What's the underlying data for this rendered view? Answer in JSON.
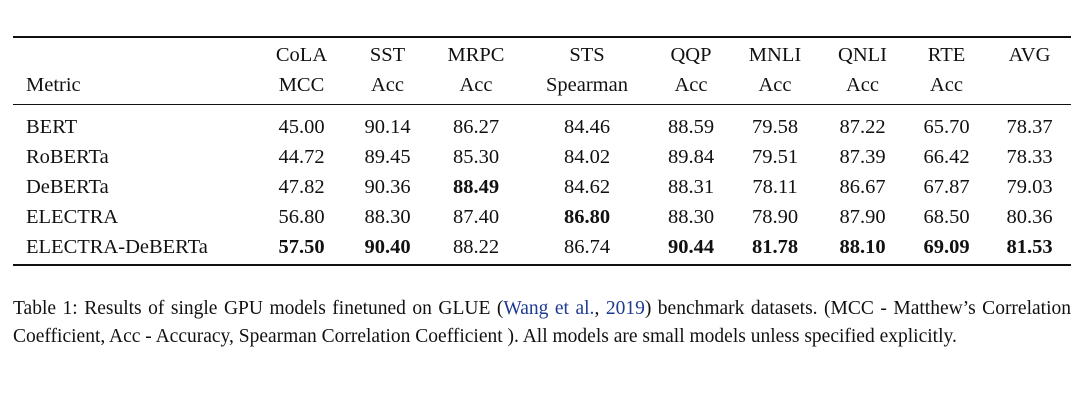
{
  "table": {
    "columns": [
      {
        "bottom": "Metric"
      },
      {
        "top": "CoLA",
        "bottom": "MCC"
      },
      {
        "top": "SST",
        "bottom": "Acc"
      },
      {
        "top": "MRPC",
        "bottom": "Acc"
      },
      {
        "top": "STS",
        "bottom": "Spearman"
      },
      {
        "top": "QQP",
        "bottom": "Acc"
      },
      {
        "top": "MNLI",
        "bottom": "Acc"
      },
      {
        "top": "QNLI",
        "bottom": "Acc"
      },
      {
        "top": "RTE",
        "bottom": "Acc"
      },
      {
        "top": "AVG"
      }
    ],
    "rows": [
      {
        "model": "BERT",
        "scores": [
          "45.00",
          "90.14",
          "86.27",
          "84.46",
          "88.59",
          "79.58",
          "87.22",
          "65.70",
          "78.37"
        ],
        "bold": [
          false,
          false,
          false,
          false,
          false,
          false,
          false,
          false,
          false
        ]
      },
      {
        "model": "RoBERTa",
        "scores": [
          "44.72",
          "89.45",
          "85.30",
          "84.02",
          "89.84",
          "79.51",
          "87.39",
          "66.42",
          "78.33"
        ],
        "bold": [
          false,
          false,
          false,
          false,
          false,
          false,
          false,
          false,
          false
        ]
      },
      {
        "model": "DeBERTa",
        "scores": [
          "47.82",
          "90.36",
          "88.49",
          "84.62",
          "88.31",
          "78.11",
          "86.67",
          "67.87",
          "79.03"
        ],
        "bold": [
          false,
          false,
          true,
          false,
          false,
          false,
          false,
          false,
          false
        ]
      },
      {
        "model": "ELECTRA",
        "scores": [
          "56.80",
          "88.30",
          "87.40",
          "86.80",
          "88.30",
          "78.90",
          "87.90",
          "68.50",
          "80.36"
        ],
        "bold": [
          false,
          false,
          false,
          true,
          false,
          false,
          false,
          false,
          false
        ]
      },
      {
        "model": "ELECTRA-DeBERTa",
        "scores": [
          "57.50",
          "90.40",
          "88.22",
          "86.74",
          "90.44",
          "81.78",
          "88.10",
          "69.09",
          "81.53"
        ],
        "bold": [
          true,
          true,
          false,
          false,
          true,
          true,
          true,
          true,
          true
        ]
      }
    ]
  },
  "caption": {
    "label": "Table 1:",
    "parts": [
      {
        "text": "Results of single GPU models finetuned on GLUE (",
        "cite": false
      },
      {
        "text": "Wang et al.",
        "cite": true
      },
      {
        "text": ", ",
        "cite": false
      },
      {
        "text": "2019",
        "cite": true
      },
      {
        "text": ") benchmark datasets. (MCC - Matthew’s Correlation Coefficient, Acc - Accuracy, Spearman Correlation Coefficient ). All models are small models unless specified explicitly.",
        "cite": false
      }
    ]
  }
}
